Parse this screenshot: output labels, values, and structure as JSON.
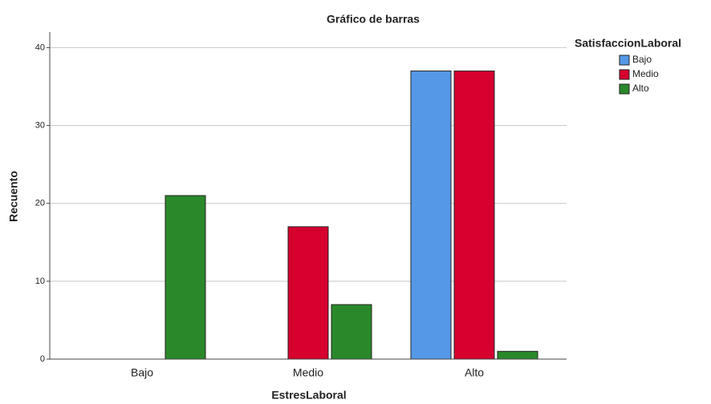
{
  "chart_data": {
    "type": "bar",
    "title": "Gráfico de barras",
    "x_label": "EstresLaboral",
    "y_label": "Recuento",
    "categories": [
      "Bajo",
      "Medio",
      "Alto"
    ],
    "legend_title": "SatisfaccionLaboral",
    "series": [
      {
        "name": "Bajo",
        "color": "#5598e7",
        "values": [
          0,
          0,
          37
        ]
      },
      {
        "name": "Medio",
        "color": "#d6002f",
        "values": [
          0,
          17,
          37
        ]
      },
      {
        "name": "Alto",
        "color": "#2a882a",
        "values": [
          21,
          7,
          1
        ]
      }
    ],
    "ylim": [
      0,
      42
    ],
    "yticks": [
      0,
      10,
      20,
      30,
      40
    ],
    "grid": true,
    "legend": "right"
  }
}
